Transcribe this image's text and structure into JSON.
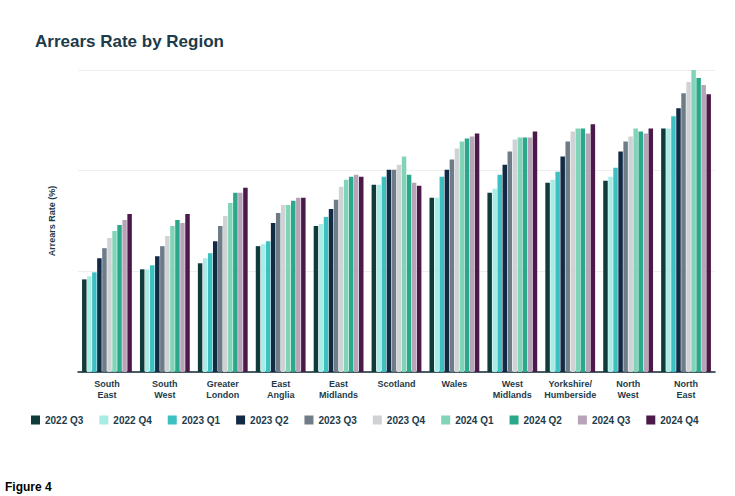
{
  "chart_data": {
    "type": "bar",
    "title": "Arrears Rate by Region",
    "caption": "Figure 4",
    "y_label": "Arrears Rate (%)",
    "categories": [
      "South\nEast",
      "South\nWest",
      "Greater\nLondon",
      "East\nAnglia",
      "East\nMidlands",
      "Scotland",
      "Wales",
      "West\nMidlands",
      "Yorkshire/\nHumberside",
      "North\nWest",
      "North\nEast"
    ],
    "series": [
      {
        "name": "2022 Q3",
        "color": "#0f3b3a",
        "values": [
          0.92,
          1.02,
          1.08,
          1.25,
          1.45,
          1.86,
          1.73,
          1.78,
          1.88,
          1.9,
          2.42
        ]
      },
      {
        "name": "2022 Q4",
        "color": "#a9ece6",
        "values": [
          0.95,
          1.02,
          1.13,
          1.27,
          1.47,
          1.86,
          1.73,
          1.82,
          1.91,
          1.94,
          2.42
        ]
      },
      {
        "name": "2023 Q1",
        "color": "#3cc0c2",
        "values": [
          0.99,
          1.06,
          1.18,
          1.3,
          1.54,
          1.94,
          1.94,
          1.96,
          1.99,
          2.03,
          2.54
        ]
      },
      {
        "name": "2023 Q2",
        "color": "#122b45",
        "values": [
          1.13,
          1.15,
          1.3,
          1.48,
          1.62,
          2.01,
          2.01,
          2.06,
          2.14,
          2.19,
          2.62
        ]
      },
      {
        "name": "2023 Q3",
        "color": "#6e7c88",
        "values": [
          1.23,
          1.25,
          1.45,
          1.58,
          1.71,
          2.01,
          2.11,
          2.19,
          2.29,
          2.29,
          2.77
        ]
      },
      {
        "name": "2023 Q4",
        "color": "#cfd3d6",
        "values": [
          1.33,
          1.35,
          1.55,
          1.66,
          1.84,
          2.06,
          2.22,
          2.31,
          2.39,
          2.34,
          2.88
        ]
      },
      {
        "name": "2024 Q1",
        "color": "#80d5b9",
        "values": [
          1.4,
          1.45,
          1.68,
          1.66,
          1.91,
          2.14,
          2.29,
          2.33,
          2.42,
          2.42,
          3.0
        ]
      },
      {
        "name": "2024 Q2",
        "color": "#2aa88a",
        "values": [
          1.46,
          1.51,
          1.78,
          1.7,
          1.94,
          1.96,
          2.32,
          2.33,
          2.42,
          2.39,
          2.92
        ]
      },
      {
        "name": "2024 Q3",
        "color": "#b9a3b9",
        "values": [
          1.51,
          1.48,
          1.78,
          1.73,
          1.96,
          1.88,
          2.34,
          2.33,
          2.37,
          2.37,
          2.85
        ]
      },
      {
        "name": "2024 Q4",
        "color": "#4b1a4b",
        "values": [
          1.57,
          1.57,
          1.83,
          1.73,
          1.94,
          1.85,
          2.37,
          2.39,
          2.46,
          2.42,
          2.76
        ]
      }
    ],
    "ylim": [
      0,
      3
    ],
    "yticks": [
      0,
      1,
      2,
      3
    ],
    "grid": true,
    "legend": "bottom",
    "tick_labels": "x"
  }
}
